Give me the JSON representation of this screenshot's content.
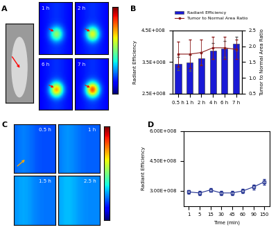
{
  "images": [
    {
      "panel": "A",
      "frames": [
        "1 h",
        "2 h",
        "6 h",
        "7 h"
      ]
    },
    {
      "panel": "C",
      "frames": [
        "0.5 h",
        "1 h",
        "1.5 h",
        "2.5 h"
      ]
    }
  ],
  "chart_data": [
    {
      "panel": "B",
      "type": "bar",
      "categories": [
        "0.5 h",
        "1 h",
        "2 h",
        "4 h",
        "6 h",
        "7 h"
      ],
      "ylabel": "Radiant Efficiency",
      "y2label": "Tumor to Normal Area Ratio",
      "ylim": [
        250000000,
        450000000
      ],
      "yticks": [
        {
          "value": 250000000,
          "label": "2.5E+008"
        },
        {
          "value": 350000000,
          "label": "3.5E+008"
        },
        {
          "value": 450000000,
          "label": "4.5E+008"
        }
      ],
      "y2lim": [
        0.5,
        2.5
      ],
      "y2ticks": [
        0.5,
        {
          "value": 1.0,
          "label": "1.0"
        },
        1.5,
        {
          "value": 2.0,
          "label": "2.0"
        },
        2.5
      ],
      "legend": "upper left",
      "series": [
        {
          "name": "Radiant Efficiency",
          "type": "bar",
          "color": "#1a1ad6",
          "values": [
            345000000,
            348000000,
            361000000,
            385000000,
            392000000,
            407000000
          ],
          "errors": [
            20000000,
            25000000,
            20000000,
            25000000,
            25000000,
            22000000
          ]
        },
        {
          "name": "Tumor to Normal Area Ratio",
          "type": "line",
          "axis": "y2",
          "color": "#8b1a1a",
          "marker": "square",
          "values": [
            1.75,
            1.75,
            1.8,
            1.95,
            1.95,
            1.9
          ],
          "errors": [
            0.4,
            0.45,
            0.4,
            0.35,
            0.35,
            0.3
          ]
        }
      ]
    },
    {
      "panel": "D",
      "type": "line",
      "categories": [
        "1",
        "5",
        "15",
        "30",
        "45",
        "60",
        "90",
        "150"
      ],
      "xlabel": "Time (min)",
      "ylabel": "Radiant Efficiency",
      "ylim": [
        225000000,
        600000000
      ],
      "yticks": [
        {
          "value": 300000000,
          "label": "3.00E+008"
        },
        {
          "value": 450000000,
          "label": "4.50E+008"
        },
        {
          "value": 600000000,
          "label": "6.00E+008"
        }
      ],
      "color": "#1f2f8f",
      "marker": "square",
      "values": [
        295000000,
        290000000,
        305000000,
        290000000,
        290000000,
        300000000,
        320000000,
        345000000
      ],
      "errors": [
        10000000,
        10000000,
        10000000,
        10000000,
        10000000,
        10000000,
        12000000,
        15000000
      ]
    }
  ]
}
